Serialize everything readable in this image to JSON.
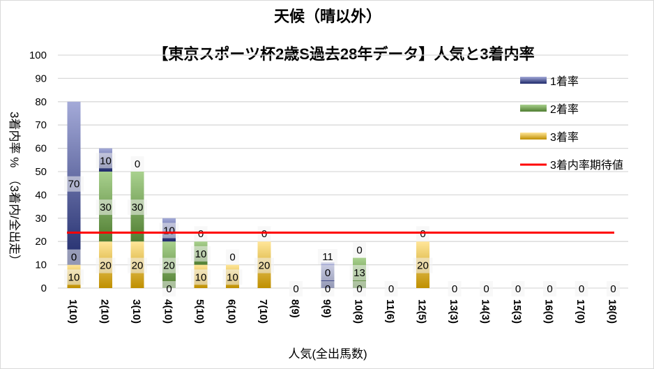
{
  "chart_data": {
    "type": "bar",
    "stacked": true,
    "title": "天候（晴以外）",
    "subtitle": "【東京スポーツ杯2歳S過去28年データ】人気と3着内率",
    "xlabel": "人気(全出馬数)",
    "ylabel": "3着内率 %　（3着内/全出走）",
    "ylim": [
      0,
      100
    ],
    "yticks": [
      0,
      10,
      20,
      30,
      40,
      50,
      60,
      70,
      80,
      90,
      100
    ],
    "grid": true,
    "legend_position": "right",
    "categories": [
      "1(10)",
      "2(10)",
      "3(10)",
      "4(10)",
      "5(10)",
      "6(10)",
      "7(10)",
      "8(9)",
      "9(9)",
      "10(8)",
      "11(6)",
      "12(5)",
      "13(3)",
      "14(3)",
      "15(3)",
      "16(0)",
      "17(0)",
      "18(0)"
    ],
    "series": [
      {
        "name": "3着率",
        "color": "#c09020",
        "values": [
          10,
          20,
          20,
          0,
          10,
          10,
          20,
          0,
          0,
          0,
          0,
          20,
          0,
          0,
          0,
          0,
          0,
          0
        ],
        "labels": [
          "10",
          "20",
          "20",
          "0",
          "10",
          "10",
          "20",
          "0",
          "0",
          "0",
          "0",
          "20",
          "0",
          "0",
          "0",
          "0",
          "0",
          "0"
        ]
      },
      {
        "name": "2着率",
        "color": "#548235",
        "values": [
          0,
          30,
          30,
          20,
          10,
          0,
          0,
          0,
          0,
          13,
          0,
          0,
          0,
          0,
          0,
          0,
          0,
          0
        ],
        "labels": [
          "0",
          "30",
          "30",
          "20",
          "10",
          "0",
          "0",
          null,
          "0",
          "13",
          null,
          "0",
          null,
          null,
          null,
          null,
          null,
          null
        ]
      },
      {
        "name": "1着率",
        "color": "#2e3a87",
        "values": [
          70,
          10,
          0,
          10,
          0,
          0,
          0,
          0,
          11,
          0,
          0,
          0,
          0,
          0,
          0,
          0,
          0,
          0
        ],
        "labels": [
          "70",
          "10",
          "0",
          "10",
          "0",
          null,
          null,
          null,
          "11",
          "0",
          null,
          null,
          null,
          null,
          null,
          null,
          null,
          null
        ]
      }
    ],
    "expected_line": {
      "name": "3着内率期待値",
      "value": 23.8,
      "color": "#ff0000"
    },
    "legend": [
      "1着率",
      "2着率",
      "3着率",
      "3着内率期待値"
    ]
  }
}
